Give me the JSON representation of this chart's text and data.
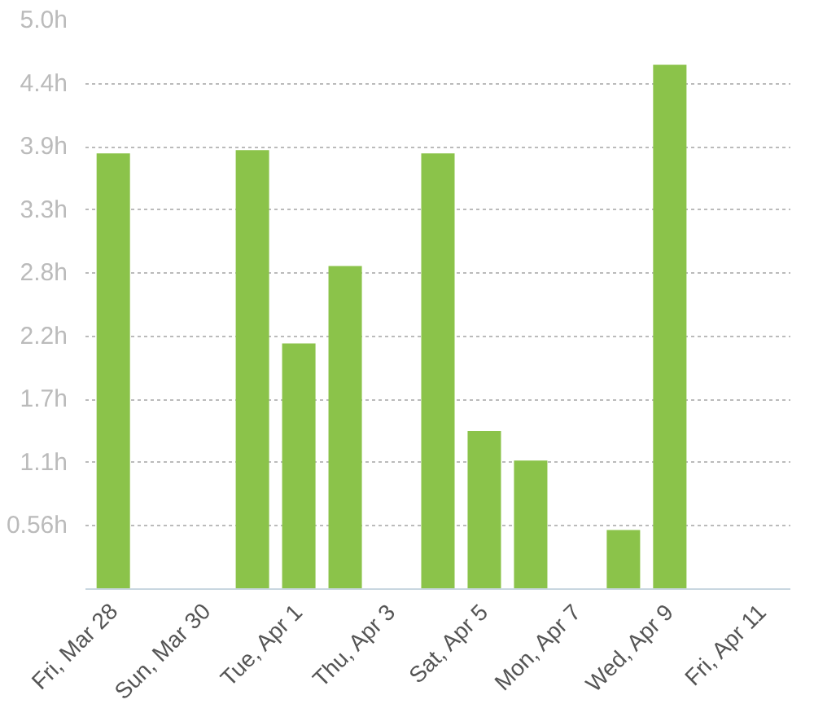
{
  "chart_data": {
    "type": "bar",
    "categories": [
      "Fri, Mar 28",
      null,
      "Sun, Mar 30",
      null,
      "Tue, Apr 1",
      null,
      "Thu, Apr 3",
      null,
      "Sat, Apr 5",
      null,
      "Mon, Apr 7",
      null,
      "Wed, Apr 9",
      null,
      "Fri, Apr 11"
    ],
    "values": [
      3.83,
      0,
      0,
      3.86,
      2.16,
      2.84,
      0,
      3.83,
      1.39,
      1.13,
      0,
      0.52,
      4.61,
      0,
      0
    ],
    "color": "#8bc34a",
    "ylim": [
      0,
      5
    ],
    "yticks": [
      {
        "value": 0.556,
        "label": "0.56h"
      },
      {
        "value": 1.111,
        "label": "1.1h"
      },
      {
        "value": 1.667,
        "label": "1.7h"
      },
      {
        "value": 2.222,
        "label": "2.2h"
      },
      {
        "value": 2.778,
        "label": "2.8h"
      },
      {
        "value": 3.333,
        "label": "3.3h"
      },
      {
        "value": 3.889,
        "label": "3.9h"
      },
      {
        "value": 4.444,
        "label": "4.4h"
      },
      {
        "value": 5,
        "label": "5.0h"
      }
    ],
    "grid": "y"
  }
}
